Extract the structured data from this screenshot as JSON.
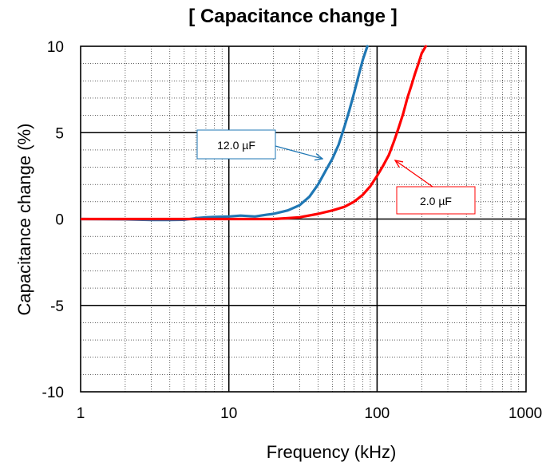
{
  "chart_data": {
    "type": "line",
    "title": "[ Capacitance change ]",
    "xlabel": "Frequency (kHz)",
    "ylabel": "Capacitance change (%)",
    "x_scale": "log",
    "xlim": [
      1,
      1300
    ],
    "ylim": [
      -10,
      10
    ],
    "x_ticks": [
      "1",
      "10",
      "100",
      "1000"
    ],
    "y_ticks": [
      "10",
      "5",
      "0",
      "-5",
      "-10"
    ],
    "grid": true,
    "series": [
      {
        "name": "12.0 µF",
        "color": "#1f77b4",
        "x": [
          1,
          2,
          3,
          4,
          5,
          6,
          7,
          8,
          10,
          12,
          15,
          18,
          20,
          25,
          30,
          35,
          40,
          45,
          50,
          55,
          60,
          65,
          70,
          75,
          80,
          86
        ],
        "y": [
          0,
          -0.02,
          -0.05,
          -0.05,
          -0.04,
          0.05,
          0.1,
          0.12,
          0.15,
          0.2,
          0.15,
          0.25,
          0.3,
          0.5,
          0.8,
          1.3,
          2.0,
          2.8,
          3.5,
          4.3,
          5.3,
          6.3,
          7.3,
          8.3,
          9.2,
          10
        ]
      },
      {
        "name": "2.0 µF",
        "color": "#ff0000",
        "x": [
          1,
          10,
          15,
          20,
          25,
          30,
          40,
          50,
          60,
          70,
          80,
          90,
          100,
          110,
          120,
          130,
          140,
          150,
          160,
          170,
          180,
          190,
          200,
          213
        ],
        "y": [
          0,
          0,
          0,
          0,
          0.05,
          0.1,
          0.3,
          0.5,
          0.7,
          1.0,
          1.4,
          1.9,
          2.5,
          3.1,
          3.7,
          4.5,
          5.3,
          6.1,
          7.0,
          7.7,
          8.4,
          9.0,
          9.6,
          10
        ]
      }
    ],
    "annotations": [
      {
        "text": "12.0 µF",
        "series": "12.0 µF"
      },
      {
        "text": "2.0 µF",
        "series": "2.0 µF"
      }
    ]
  }
}
